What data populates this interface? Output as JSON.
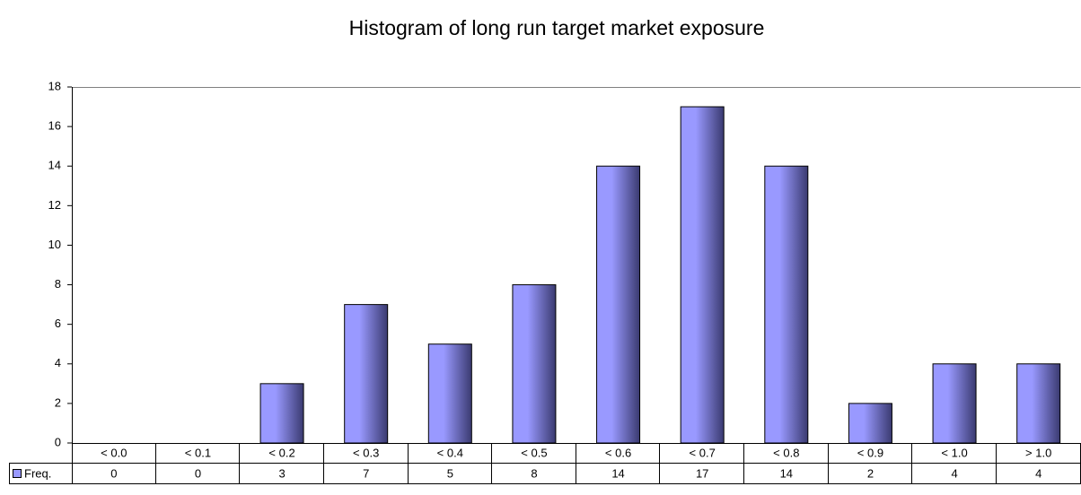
{
  "chart_data": {
    "type": "bar",
    "title": "Histogram of long run target market exposure",
    "categories": [
      "< 0.0",
      "< 0.1",
      "< 0.2",
      "< 0.3",
      "< 0.4",
      "< 0.5",
      "< 0.6",
      "< 0.7",
      "< 0.8",
      "< 0.9",
      "< 1.0",
      "> 1.0"
    ],
    "series": [
      {
        "name": "Freq.",
        "color": "#9999ff",
        "values": [
          0,
          0,
          3,
          7,
          5,
          8,
          14,
          17,
          14,
          2,
          4,
          4
        ]
      }
    ],
    "ylim": [
      0,
      18
    ],
    "yticks": [
      0,
      2,
      4,
      6,
      8,
      10,
      12,
      14,
      16,
      18
    ],
    "grid": false
  }
}
